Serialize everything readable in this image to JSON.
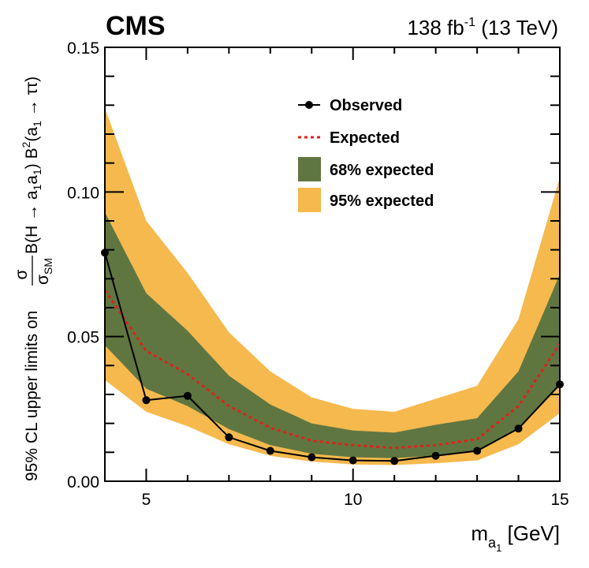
{
  "header": {
    "experiment": "CMS",
    "lumi_value": "138 fb",
    "lumi_exp": "-1",
    "lumi_energy": " (13 TeV)"
  },
  "axis": {
    "x_label": "m",
    "x_label_sub1": "a",
    "x_label_sub2": "1",
    "x_label_unit": " [GeV]",
    "y_label_frac_num": "σ",
    "y_label_frac_den": "σ",
    "y_label_frac_den_sub": "SM",
    "y_label_prefix": "95% CL upper limits on ",
    "y_label_main1": " B(H → a",
    "y_label_sub_a": "1",
    "y_label_main2": "a",
    "y_label_sub_b": "1",
    "y_label_main3": ") B",
    "y_label_sup": "2",
    "y_label_main4": "(a",
    "y_label_sub_c": "1",
    "y_label_main5": " → ττ)"
  },
  "chart_data": {
    "type": "line",
    "xlim": [
      4,
      15
    ],
    "ylim": [
      0,
      0.15
    ],
    "x_ticks": [
      5,
      10,
      15
    ],
    "x_tick_labels": [
      "5",
      "10",
      "15"
    ],
    "y_ticks": [
      0,
      0.05,
      0.1,
      0.15
    ],
    "y_tick_labels": [
      "0.00",
      "0.05",
      "0.10",
      "0.15"
    ],
    "grid": false,
    "legend_position": "top-center",
    "legend": {
      "observed": "Observed",
      "expected": "Expected",
      "band68": "68% expected",
      "band95": "95% expected"
    },
    "x": [
      4,
      5,
      6,
      7,
      8,
      9,
      10,
      11,
      12,
      13,
      14,
      15
    ],
    "series": [
      {
        "name": "Observed",
        "values": [
          0.079,
          0.028,
          0.0295,
          0.0152,
          0.0105,
          0.0083,
          0.0072,
          0.007,
          0.0088,
          0.0105,
          0.0182,
          0.0335
        ]
      },
      {
        "name": "Expected",
        "values": [
          0.066,
          0.045,
          0.037,
          0.026,
          0.0185,
          0.014,
          0.0125,
          0.0115,
          0.0125,
          0.0145,
          0.026,
          0.0475
        ]
      }
    ],
    "band68": {
      "lower": [
        0.047,
        0.032,
        0.026,
        0.018,
        0.0125,
        0.0095,
        0.0083,
        0.008,
        0.0088,
        0.0102,
        0.018,
        0.033
      ],
      "upper": [
        0.093,
        0.065,
        0.052,
        0.0365,
        0.0265,
        0.02,
        0.0175,
        0.0168,
        0.0195,
        0.0218,
        0.038,
        0.0715
      ]
    },
    "band95": {
      "lower": [
        0.035,
        0.024,
        0.019,
        0.0128,
        0.0088,
        0.0068,
        0.0058,
        0.0056,
        0.0062,
        0.0072,
        0.0128,
        0.0235
      ],
      "upper": [
        0.129,
        0.09,
        0.072,
        0.0515,
        0.038,
        0.029,
        0.025,
        0.024,
        0.0285,
        0.033,
        0.056,
        0.105
      ]
    },
    "colors": {
      "band95": "#F5B94E",
      "band68": "#607641",
      "expected": "#E0211A",
      "observed": "#000000"
    }
  }
}
